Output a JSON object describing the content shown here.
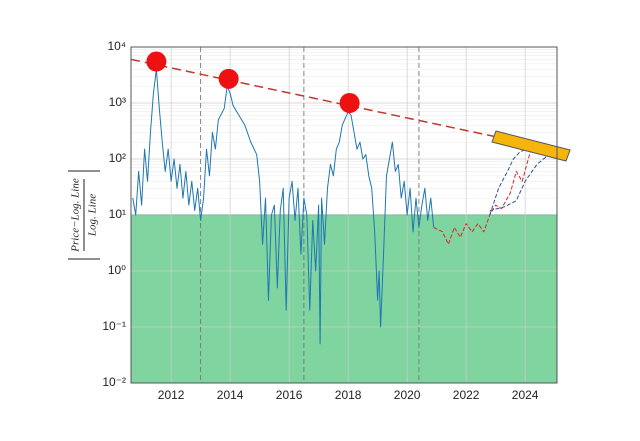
{
  "chart_data": {
    "type": "line",
    "log_y": true,
    "y_label": {
      "numerator": "Price−Log. Line",
      "denominator": "Log. Line"
    },
    "xlim": [
      2010.64,
      2025.08
    ],
    "ylim": [
      0.01,
      10000
    ],
    "xticks": [
      2012,
      2014,
      2016,
      2018,
      2020,
      2022,
      2024
    ],
    "yticks": [
      {
        "value": 0.01,
        "label": "10⁻²"
      },
      {
        "value": 0.1,
        "label": "10⁻¹"
      },
      {
        "value": 1,
        "label": "10⁰"
      },
      {
        "value": 10,
        "label": "10¹"
      },
      {
        "value": 100,
        "label": "10²"
      },
      {
        "value": 1000,
        "label": "10³"
      },
      {
        "value": 10000,
        "label": "10⁴"
      }
    ],
    "grid": true,
    "threshold_fill": {
      "value": 10,
      "color": "#7fd4a0",
      "edge": "#2ca25f"
    },
    "cycle_lines": [
      2013.0,
      2016.5,
      2020.4
    ],
    "trend_line": {
      "color": "#c0392b",
      "x": [
        2010.64,
        2024.5
      ],
      "values": [
        6000,
        170
      ]
    },
    "peaks": {
      "color": "#ee1111",
      "x": [
        2011.5,
        2013.95,
        2018.05
      ],
      "values": [
        5500,
        2700,
        1000
      ]
    },
    "series": [
      {
        "color": "#1f77b4",
        "dash": false,
        "x": [
          2010.7,
          2010.8,
          2010.9,
          2011.0,
          2011.1,
          2011.2,
          2011.3,
          2011.4,
          2011.5,
          2011.6,
          2011.7,
          2011.8,
          2011.9,
          2012.0,
          2012.1,
          2012.2,
          2012.3,
          2012.4,
          2012.5,
          2012.6,
          2012.7,
          2012.8,
          2012.9,
          2013.0,
          2013.1,
          2013.2,
          2013.3,
          2013.4,
          2013.5,
          2013.6,
          2013.8,
          2013.9,
          2014.0,
          2014.1,
          2014.3,
          2014.5,
          2014.7,
          2014.9,
          2015.0,
          2015.1,
          2015.2,
          2015.3,
          2015.4,
          2015.5,
          2015.6,
          2015.7,
          2015.8,
          2015.9,
          2016.0,
          2016.1,
          2016.2,
          2016.3,
          2016.4,
          2016.5,
          2016.6,
          2016.7,
          2016.8,
          2016.9,
          2017.0,
          2017.05,
          2017.1,
          2017.2,
          2017.3,
          2017.4,
          2017.5,
          2017.6,
          2017.7,
          2017.8,
          2018.0,
          2018.1,
          2018.2,
          2018.3,
          2018.4,
          2018.5,
          2018.6,
          2018.7,
          2018.8,
          2018.9,
          2019.0,
          2019.05,
          2019.1,
          2019.2,
          2019.3,
          2019.4,
          2019.5,
          2019.6,
          2019.7,
          2019.8,
          2019.9,
          2020.0,
          2020.1,
          2020.2,
          2020.3,
          2020.4,
          2020.5,
          2020.6,
          2020.7,
          2020.8,
          2020.9
        ],
        "values": [
          20,
          10,
          60,
          15,
          150,
          40,
          300,
          1500,
          4000,
          800,
          200,
          60,
          150,
          40,
          100,
          30,
          80,
          20,
          60,
          15,
          40,
          12,
          30,
          8,
          20,
          150,
          50,
          300,
          150,
          500,
          800,
          2000,
          1500,
          900,
          600,
          400,
          200,
          120,
          40,
          3,
          20,
          0.3,
          10,
          15,
          0.5,
          12,
          30,
          0.2,
          20,
          40,
          8,
          30,
          2,
          20,
          10,
          0.2,
          8,
          1,
          15,
          0.05,
          20,
          3,
          30,
          80,
          50,
          150,
          200,
          400,
          700,
          600,
          300,
          150,
          200,
          100,
          120,
          50,
          30,
          5,
          0.3,
          1,
          0.1,
          2,
          50,
          100,
          200,
          60,
          80,
          20,
          40,
          10,
          30,
          5,
          20,
          6,
          15,
          30,
          8,
          20,
          6
        ]
      },
      {
        "color": "#d62728",
        "dash": true,
        "x": [
          2020.9,
          2021.2,
          2021.4,
          2021.6,
          2021.8,
          2022.0,
          2022.2,
          2022.4,
          2022.6,
          2022.8,
          2023.0,
          2023.2,
          2023.5,
          2023.7,
          2023.9,
          2024.2
        ],
        "values": [
          6,
          5,
          3,
          6,
          4,
          7,
          5,
          7,
          5,
          10,
          15,
          13,
          25,
          60,
          40,
          150
        ]
      },
      {
        "color": "#2c4f9e",
        "dash": true,
        "x": [
          2022.8,
          2023.1,
          2023.4,
          2023.6,
          2023.8,
          2024.0
        ],
        "values": [
          10,
          30,
          60,
          100,
          130,
          150
        ]
      },
      {
        "color": "#2c4f9e",
        "dash": true,
        "x": [
          2022.8,
          2023.3,
          2023.7,
          2024.0,
          2024.4,
          2024.8
        ],
        "values": [
          12,
          14,
          18,
          40,
          80,
          120
        ]
      }
    ]
  }
}
